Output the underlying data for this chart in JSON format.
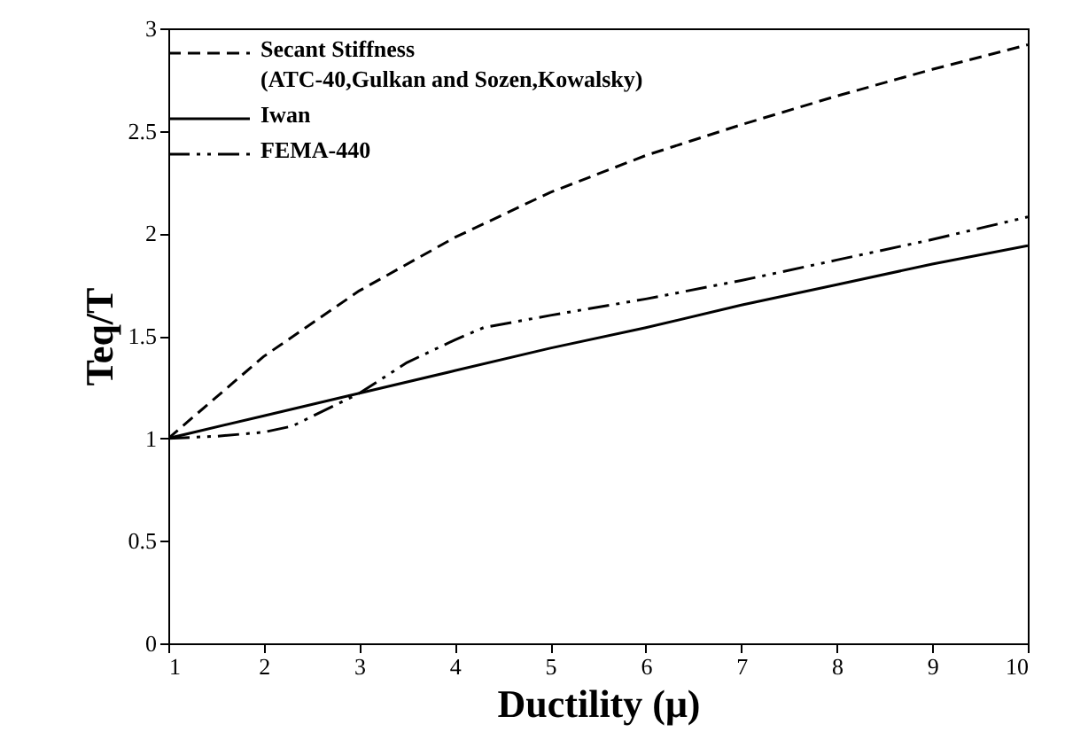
{
  "chart_data": {
    "type": "line",
    "xlabel": "Ductility (μ)",
    "ylabel": "Teq/T",
    "xlim": [
      1,
      10
    ],
    "xticks": [
      1,
      2,
      3,
      4,
      5,
      6,
      7,
      8,
      9,
      10
    ],
    "ylim": [
      0,
      3
    ],
    "yticks": [
      0,
      0.5,
      1,
      1.5,
      2,
      2.5,
      3
    ],
    "grid": false,
    "legend": "top left",
    "marker": "none",
    "series": [
      {
        "name": "Secant Stiffness\n(ATC-40,Gulkan and Sozen,Kowalsky)",
        "color": "#000000",
        "line_style": "dashed",
        "x": [
          1,
          1.5,
          2,
          3,
          4,
          5,
          6,
          7,
          8,
          9,
          10
        ],
        "values": [
          1,
          1.2,
          1.4,
          1.72,
          1.98,
          2.2,
          2.38,
          2.53,
          2.67,
          2.8,
          2.92
        ]
      },
      {
        "name": "Iwan",
        "color": "#000000",
        "line_style": "solid",
        "x": [
          1,
          2,
          3,
          4,
          5,
          6,
          7,
          8,
          9,
          10
        ],
        "values": [
          1,
          1.11,
          1.22,
          1.33,
          1.44,
          1.54,
          1.65,
          1.75,
          1.85,
          1.94
        ]
      },
      {
        "name": "FEMA-440",
        "color": "#000000",
        "line_style": "dashdot",
        "x": [
          1,
          1.5,
          2,
          2.3,
          3,
          3.5,
          4,
          4.3,
          5,
          6,
          7,
          8,
          9,
          10
        ],
        "values": [
          1,
          1.01,
          1.03,
          1.06,
          1.22,
          1.37,
          1.48,
          1.54,
          1.6,
          1.68,
          1.77,
          1.87,
          1.97,
          2.08
        ]
      }
    ]
  }
}
